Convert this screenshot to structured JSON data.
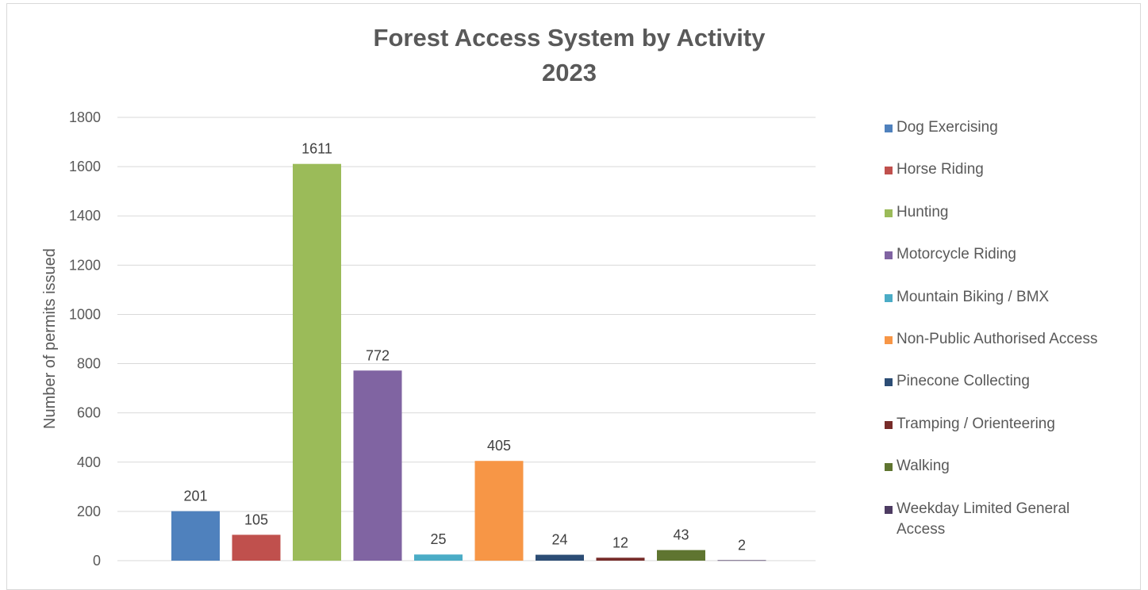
{
  "chart_data": {
    "type": "bar",
    "title": "Forest Access System by Activity",
    "subtitle": "2023",
    "xlabel": "",
    "ylabel": "Number of permits issued",
    "ylim": [
      0,
      1800
    ],
    "yticks": [
      0,
      200,
      400,
      600,
      800,
      1000,
      1200,
      1400,
      1600,
      1800
    ],
    "grid": true,
    "legend_position": "right",
    "series": [
      {
        "name": "Dog Exercising",
        "value": 201,
        "color": "#4f81bd"
      },
      {
        "name": "Horse Riding",
        "value": 105,
        "color": "#c0504d"
      },
      {
        "name": "Hunting",
        "value": 1611,
        "color": "#9bbb59"
      },
      {
        "name": "Motorcycle Riding",
        "value": 772,
        "color": "#8064a2"
      },
      {
        "name": "Mountain Biking / BMX",
        "value": 25,
        "color": "#4bacc6"
      },
      {
        "name": "Non-Public Authorised Access",
        "value": 405,
        "color": "#f79646"
      },
      {
        "name": "Pinecone Collecting",
        "value": 24,
        "color": "#2c4d75"
      },
      {
        "name": "Tramping / Orienteering",
        "value": 12,
        "color": "#772c2a"
      },
      {
        "name": "Walking",
        "value": 43,
        "color": "#5f7530"
      },
      {
        "name": "Weekday Limited General Access",
        "value": 2,
        "color": "#4d3b62"
      }
    ]
  }
}
